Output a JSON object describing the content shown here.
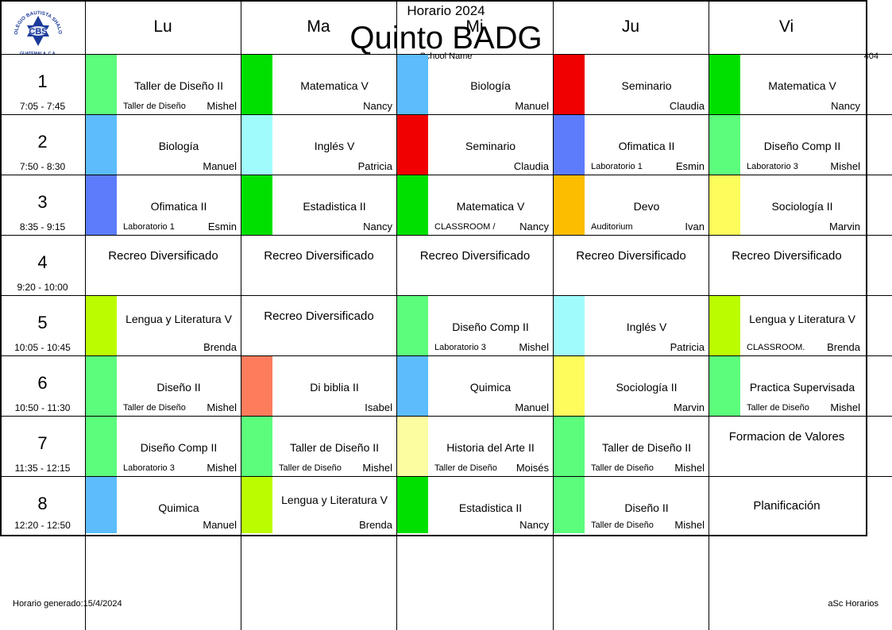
{
  "header": {
    "subtitle": "Horario 2024",
    "title": "Quinto BADG",
    "school": "School Name",
    "code": "404",
    "logo_text_top": "COLEGIO BAUTISTA SHALOM",
    "logo_text_center": "CBS",
    "logo_text_bottom": "GUATEMALA, C.A."
  },
  "days": [
    "Lu",
    "Ma",
    "Mi",
    "Ju",
    "Vi"
  ],
  "periods": [
    {
      "num": "1",
      "time": "7:05 - 7:45"
    },
    {
      "num": "2",
      "time": "7:50 - 8:30"
    },
    {
      "num": "3",
      "time": "8:35 - 9:15"
    },
    {
      "num": "4",
      "time": "9:20 - 10:00"
    },
    {
      "num": "5",
      "time": "10:05 - 10:45"
    },
    {
      "num": "6",
      "time": "10:50 - 11:30"
    },
    {
      "num": "7",
      "time": "11:35 - 12:15"
    },
    {
      "num": "8",
      "time": "12:20 - 12:50"
    }
  ],
  "schedule": [
    [
      {
        "subject": "Taller de Diseño II",
        "room": "Taller de Diseño",
        "teacher": "Mishel",
        "color": "#5CFC7C"
      },
      {
        "subject": "Matematica V",
        "room": "",
        "teacher": "Nancy",
        "color": "#00E000"
      },
      {
        "subject": "Biología",
        "room": "",
        "teacher": "Manuel",
        "color": "#5CBCFC"
      },
      {
        "subject": "Seminario",
        "room": "",
        "teacher": "Claudia",
        "color": "#F00000"
      },
      {
        "subject": "Matematica V",
        "room": "",
        "teacher": "Nancy",
        "color": "#00E000"
      }
    ],
    [
      {
        "subject": "Biología",
        "room": "",
        "teacher": "Manuel",
        "color": "#5CBCFC"
      },
      {
        "subject": "Inglés V",
        "room": "",
        "teacher": "Patricia",
        "color": "#A0FCFC"
      },
      {
        "subject": "Seminario",
        "room": "",
        "teacher": "Claudia",
        "color": "#F00000"
      },
      {
        "subject": "Ofimatica II",
        "room": "Laboratorio 1",
        "teacher": "Esmin",
        "color": "#5C7CFC"
      },
      {
        "subject": "Diseño Comp II",
        "room": "Laboratorio 3",
        "teacher": "Mishel",
        "color": "#5CFC7C"
      }
    ],
    [
      {
        "subject": "Ofimatica II",
        "room": "Laboratorio 1",
        "teacher": "Esmin",
        "color": "#5C7CFC"
      },
      {
        "subject": "Estadistica II",
        "room": "",
        "teacher": "Nancy",
        "color": "#00E000"
      },
      {
        "subject": "Matematica V",
        "room": "CLASSROOM /",
        "teacher": "Nancy",
        "color": "#00E000"
      },
      {
        "subject": "Devo",
        "room": "Auditorium",
        "teacher": "Ivan",
        "color": "#FCBC00"
      },
      {
        "subject": "Sociología II",
        "room": "",
        "teacher": "Marvin",
        "color": "#FCFC5C"
      }
    ],
    [
      {
        "subject": "Recreo Diversificado",
        "room": "",
        "teacher": "",
        "color": ""
      },
      {
        "subject": "Recreo Diversificado",
        "room": "",
        "teacher": "",
        "color": ""
      },
      {
        "subject": "Recreo Diversificado",
        "room": "",
        "teacher": "",
        "color": ""
      },
      {
        "subject": "Recreo Diversificado",
        "room": "",
        "teacher": "",
        "color": ""
      },
      {
        "subject": "Recreo Diversificado",
        "room": "",
        "teacher": "",
        "color": ""
      }
    ],
    [
      {
        "subject": "Lengua y Literatura V",
        "room": "",
        "teacher": "Brenda",
        "color": "#BCFC00"
      },
      {
        "subject": "Recreo Diversificado",
        "room": "",
        "teacher": "",
        "color": ""
      },
      {
        "subject": "Diseño Comp II",
        "room": "Laboratorio 3",
        "teacher": "Mishel",
        "color": "#5CFC7C"
      },
      {
        "subject": "Inglés V",
        "room": "",
        "teacher": "Patricia",
        "color": "#A0FCFC"
      },
      {
        "subject": "Lengua y Literatura V",
        "room": "CLASSROOM.",
        "teacher": "Brenda",
        "color": "#BCFC00"
      }
    ],
    [
      {
        "subject": "Diseño II",
        "room": "Taller de Diseño",
        "teacher": "Mishel",
        "color": "#5CFC7C"
      },
      {
        "subject": "Di biblia II",
        "room": "",
        "teacher": "Isabel",
        "color": "#FC7C5C"
      },
      {
        "subject": "Quimica",
        "room": "",
        "teacher": "Manuel",
        "color": "#5CBCFC"
      },
      {
        "subject": "Sociología II",
        "room": "",
        "teacher": "Marvin",
        "color": "#FCFC5C"
      },
      {
        "subject": "Practica Supervisada",
        "room": "Taller de Diseño",
        "teacher": "Mishel",
        "color": "#5CFC7C"
      }
    ],
    [
      {
        "subject": "Diseño Comp II",
        "room": "Laboratorio 3",
        "teacher": "Mishel",
        "color": "#5CFC7C"
      },
      {
        "subject": "Taller de Diseño II",
        "room": "Taller de Diseño",
        "teacher": "Mishel",
        "color": "#5CFC7C"
      },
      {
        "subject": "Historia del Arte II",
        "room": "Taller de Diseño",
        "teacher": "Moisés",
        "color": "#FCFCA0"
      },
      {
        "subject": "Taller de Diseño II",
        "room": "Taller de Diseño",
        "teacher": "Mishel",
        "color": "#5CFC7C"
      },
      {
        "subject": "Formacion de Valores",
        "room": "",
        "teacher": "",
        "color": ""
      }
    ],
    [
      {
        "subject": "Quimica",
        "room": "",
        "teacher": "Manuel",
        "color": "#5CBCFC"
      },
      {
        "subject": "Lengua y Literatura V",
        "room": "",
        "teacher": "Brenda",
        "color": "#BCFC00"
      },
      {
        "subject": "Estadistica II",
        "room": "",
        "teacher": "Nancy",
        "color": "#00E000"
      },
      {
        "subject": "Diseño II",
        "room": "Taller de Diseño",
        "teacher": "Mishel",
        "color": "#5CFC7C"
      },
      {
        "subject": "Planificación",
        "room": "",
        "teacher": "",
        "color": ""
      }
    ]
  ],
  "footer": {
    "generated": "Horario generado:15/4/2024",
    "app": "aSc Horarios"
  }
}
